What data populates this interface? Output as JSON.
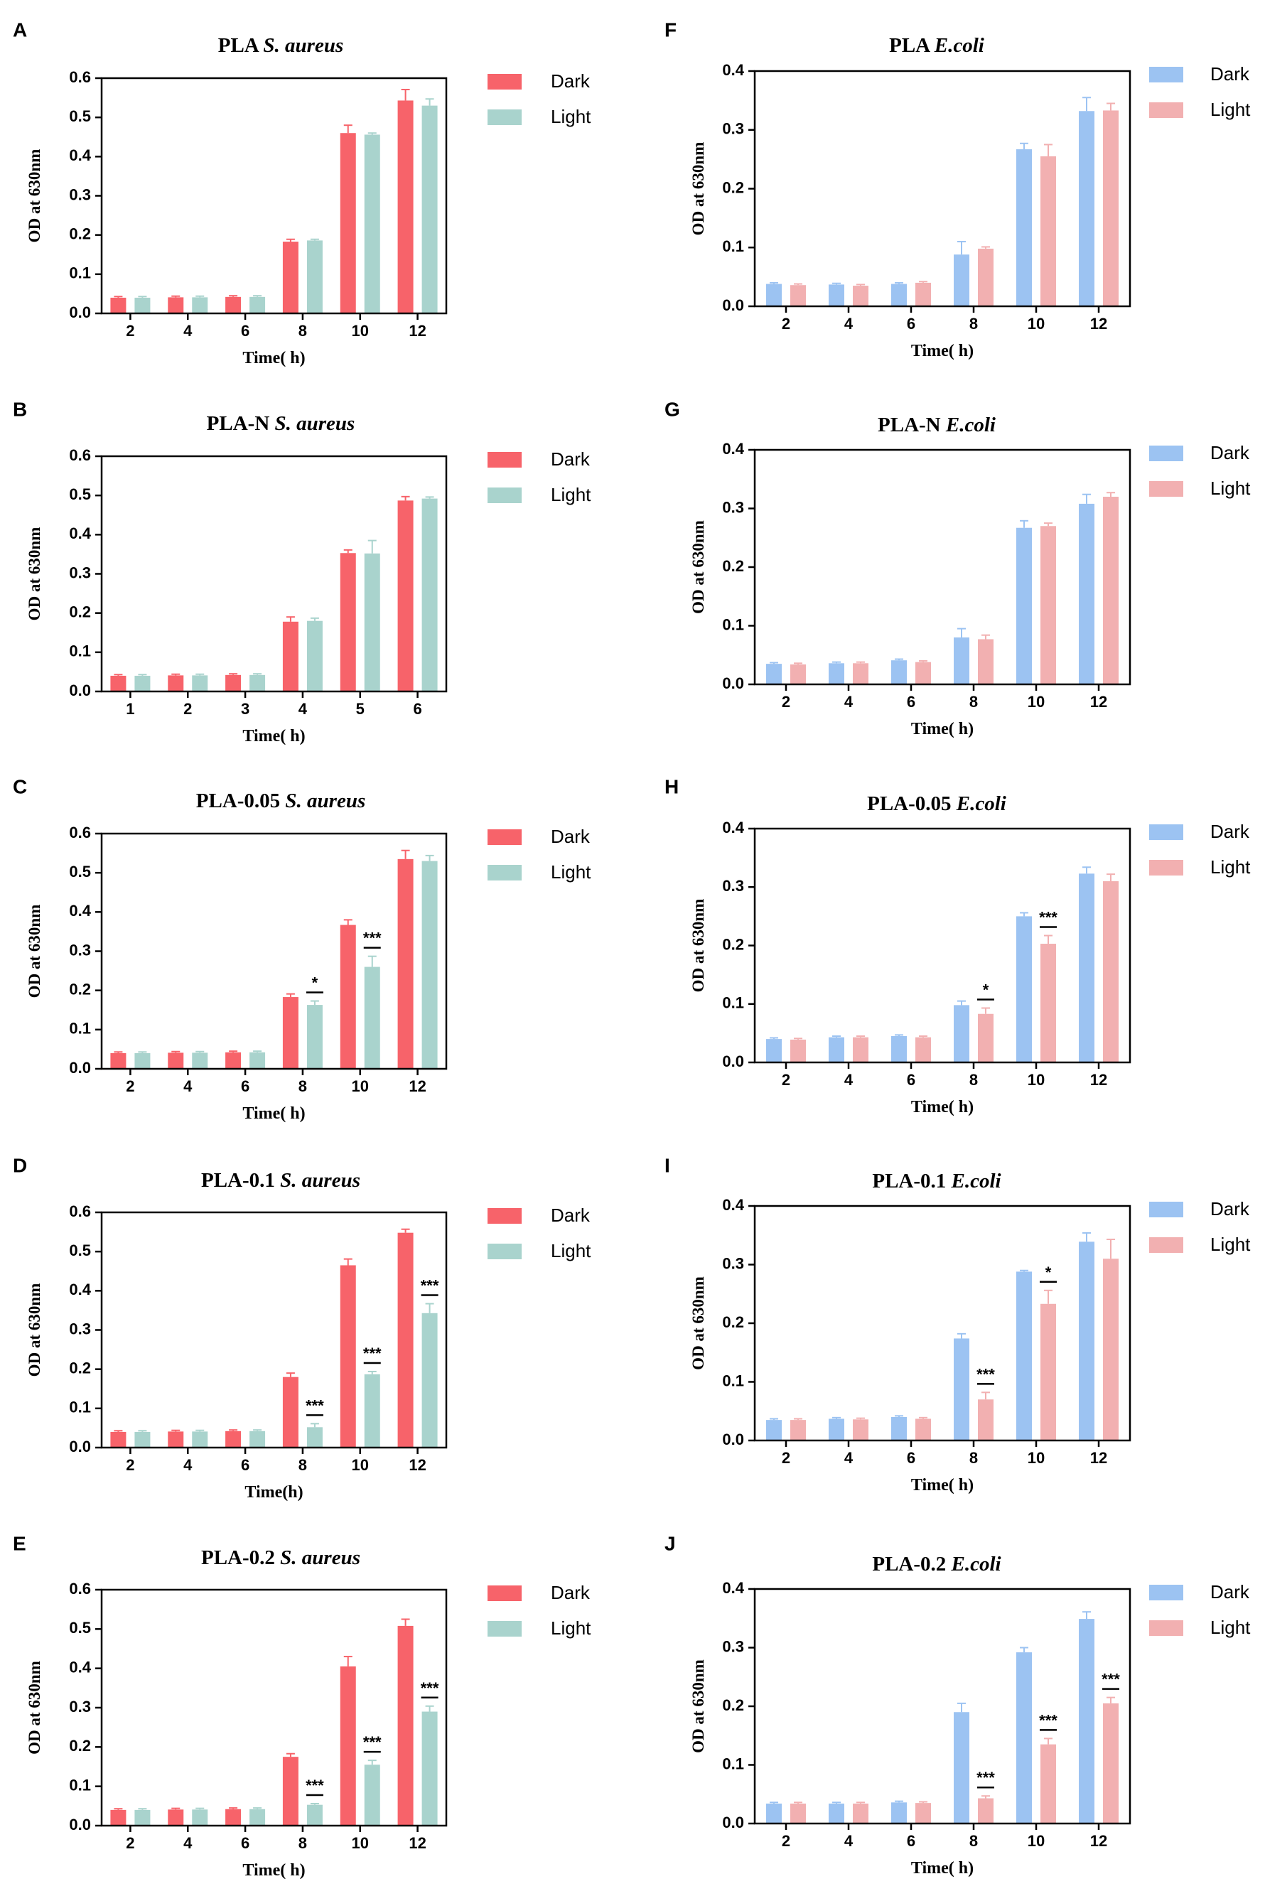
{
  "colors": {
    "saureus_dark": "#f7636a",
    "saureus_light": "#a9d3cd",
    "ecoli_dark": "#9cc3f2",
    "ecoli_light": "#f2b0b1",
    "axis": "#000000"
  },
  "chart_data": [
    {
      "panel": "A",
      "type": "bar",
      "title_prefix": "PLA",
      "title_species": "S. aureus",
      "xlabel": "Time( h)",
      "ylabel": "OD at 630nm",
      "categories": [
        "2",
        "4",
        "6",
        "8",
        "10",
        "12"
      ],
      "ylim": [
        0,
        0.6
      ],
      "yticks": [
        "0.0",
        "0.1",
        "0.2",
        "0.3",
        "0.4",
        "0.5",
        "0.6"
      ],
      "legend_position": "right",
      "palette": "saureus",
      "series": [
        {
          "name": "Dark",
          "values": [
            0.04,
            0.041,
            0.042,
            0.183,
            0.46,
            0.543
          ],
          "errors": [
            0.003,
            0.003,
            0.003,
            0.006,
            0.02,
            0.028
          ]
        },
        {
          "name": "Light",
          "values": [
            0.04,
            0.041,
            0.042,
            0.186,
            0.456,
            0.53
          ],
          "errors": [
            0.003,
            0.003,
            0.003,
            0.003,
            0.004,
            0.017
          ]
        }
      ],
      "annotations": []
    },
    {
      "panel": "B",
      "type": "bar",
      "title_prefix": "PLA-N",
      "title_species": "S. aureus",
      "xlabel": "Time( h)",
      "ylabel": "OD at 630nm",
      "categories": [
        "1",
        "2",
        "3",
        "4",
        "5",
        "6"
      ],
      "ylim": [
        0,
        0.6
      ],
      "yticks": [
        "0.0",
        "0.1",
        "0.2",
        "0.3",
        "0.4",
        "0.5",
        "0.6"
      ],
      "legend_position": "right",
      "palette": "saureus",
      "series": [
        {
          "name": "Dark",
          "values": [
            0.04,
            0.041,
            0.042,
            0.178,
            0.353,
            0.487
          ],
          "errors": [
            0.003,
            0.003,
            0.003,
            0.012,
            0.008,
            0.01
          ]
        },
        {
          "name": "Light",
          "values": [
            0.04,
            0.041,
            0.042,
            0.18,
            0.352,
            0.492
          ],
          "errors": [
            0.003,
            0.003,
            0.003,
            0.007,
            0.033,
            0.004
          ]
        }
      ],
      "annotations": []
    },
    {
      "panel": "C",
      "type": "bar",
      "title_prefix": "PLA-0.05",
      "title_species": "S. aureus",
      "xlabel": "Time( h)",
      "ylabel": "OD at 630nm",
      "categories": [
        "2",
        "4",
        "6",
        "8",
        "10",
        "12"
      ],
      "ylim": [
        0,
        0.6
      ],
      "yticks": [
        "0.0",
        "0.1",
        "0.2",
        "0.3",
        "0.4",
        "0.5",
        "0.6"
      ],
      "legend_position": "right",
      "palette": "saureus",
      "series": [
        {
          "name": "Dark",
          "values": [
            0.04,
            0.041,
            0.042,
            0.183,
            0.367,
            0.535
          ],
          "errors": [
            0.003,
            0.003,
            0.003,
            0.008,
            0.013,
            0.022
          ]
        },
        {
          "name": "Light",
          "values": [
            0.04,
            0.041,
            0.042,
            0.163,
            0.26,
            0.53
          ],
          "errors": [
            0.003,
            0.003,
            0.003,
            0.01,
            0.027,
            0.014
          ]
        }
      ],
      "annotations": [
        {
          "category_index": 3,
          "text": "*"
        },
        {
          "category_index": 4,
          "text": "***"
        }
      ]
    },
    {
      "panel": "D",
      "type": "bar",
      "title_prefix": "PLA-0.1",
      "title_species": "S. aureus",
      "xlabel": "Time(h)",
      "ylabel": "OD at 630nm",
      "categories": [
        "2",
        "4",
        "6",
        "8",
        "10",
        "12"
      ],
      "ylim": [
        0,
        0.6
      ],
      "yticks": [
        "0.0",
        "0.1",
        "0.2",
        "0.3",
        "0.4",
        "0.5",
        "0.6"
      ],
      "legend_position": "right",
      "palette": "saureus",
      "series": [
        {
          "name": "Dark",
          "values": [
            0.04,
            0.041,
            0.042,
            0.18,
            0.465,
            0.548
          ],
          "errors": [
            0.003,
            0.003,
            0.003,
            0.01,
            0.016,
            0.009
          ]
        },
        {
          "name": "Light",
          "values": [
            0.04,
            0.041,
            0.042,
            0.052,
            0.187,
            0.343
          ],
          "errors": [
            0.003,
            0.003,
            0.003,
            0.009,
            0.007,
            0.024
          ]
        }
      ],
      "annotations": [
        {
          "category_index": 3,
          "text": "***"
        },
        {
          "category_index": 4,
          "text": "***"
        },
        {
          "category_index": 5,
          "text": "***"
        }
      ]
    },
    {
      "panel": "E",
      "type": "bar",
      "title_prefix": "PLA-0.2",
      "title_species": "S. aureus",
      "xlabel": "Time( h)",
      "ylabel": "OD at 630nm",
      "categories": [
        "2",
        "4",
        "6",
        "8",
        "10",
        "12"
      ],
      "ylim": [
        0,
        0.6
      ],
      "yticks": [
        "0.0",
        "0.1",
        "0.2",
        "0.3",
        "0.4",
        "0.5",
        "0.6"
      ],
      "legend_position": "right",
      "palette": "saureus",
      "series": [
        {
          "name": "Dark",
          "values": [
            0.04,
            0.041,
            0.042,
            0.175,
            0.405,
            0.508
          ],
          "errors": [
            0.003,
            0.003,
            0.003,
            0.008,
            0.025,
            0.017
          ]
        },
        {
          "name": "Light",
          "values": [
            0.04,
            0.041,
            0.042,
            0.053,
            0.155,
            0.29
          ],
          "errors": [
            0.003,
            0.003,
            0.003,
            0.003,
            0.011,
            0.014
          ]
        }
      ],
      "annotations": [
        {
          "category_index": 3,
          "text": "***"
        },
        {
          "category_index": 4,
          "text": "***"
        },
        {
          "category_index": 5,
          "text": "***"
        }
      ]
    },
    {
      "panel": "F",
      "type": "bar",
      "title_prefix": "PLA",
      "title_species": "E.coli",
      "xlabel": "Time( h)",
      "ylabel": "OD at 630nm",
      "categories": [
        "2",
        "4",
        "6",
        "8",
        "10",
        "12"
      ],
      "ylim": [
        0,
        0.4
      ],
      "yticks": [
        "0.0",
        "0.1",
        "0.2",
        "0.3",
        "0.4"
      ],
      "legend_position": "right",
      "palette": "ecoli",
      "series": [
        {
          "name": "Dark",
          "values": [
            0.038,
            0.037,
            0.038,
            0.088,
            0.267,
            0.332
          ],
          "errors": [
            0.002,
            0.002,
            0.002,
            0.022,
            0.01,
            0.023
          ]
        },
        {
          "name": "Light",
          "values": [
            0.036,
            0.035,
            0.04,
            0.098,
            0.255,
            0.333
          ],
          "errors": [
            0.002,
            0.002,
            0.002,
            0.003,
            0.02,
            0.012
          ]
        }
      ],
      "annotations": []
    },
    {
      "panel": "G",
      "type": "bar",
      "title_prefix": "PLA-N",
      "title_species": "E.coli",
      "xlabel": "Time( h)",
      "ylabel": "OD at 630nm",
      "categories": [
        "2",
        "4",
        "6",
        "8",
        "10",
        "12"
      ],
      "ylim": [
        0,
        0.4
      ],
      "yticks": [
        "0.0",
        "0.1",
        "0.2",
        "0.3",
        "0.4"
      ],
      "legend_position": "right",
      "palette": "ecoli",
      "series": [
        {
          "name": "Dark",
          "values": [
            0.035,
            0.036,
            0.041,
            0.08,
            0.267,
            0.308
          ],
          "errors": [
            0.002,
            0.002,
            0.002,
            0.015,
            0.012,
            0.016
          ]
        },
        {
          "name": "Light",
          "values": [
            0.034,
            0.036,
            0.038,
            0.077,
            0.27,
            0.32
          ],
          "errors": [
            0.002,
            0.002,
            0.002,
            0.007,
            0.005,
            0.007
          ]
        }
      ],
      "annotations": []
    },
    {
      "panel": "H",
      "type": "bar",
      "title_prefix": "PLA-0.05",
      "title_species": "E.coli",
      "xlabel": "Time( h)",
      "ylabel": "OD at 630nm",
      "categories": [
        "2",
        "4",
        "6",
        "8",
        "10",
        "12"
      ],
      "ylim": [
        0,
        0.4
      ],
      "yticks": [
        "0.0",
        "0.1",
        "0.2",
        "0.3",
        "0.4"
      ],
      "legend_position": "right",
      "palette": "ecoli",
      "series": [
        {
          "name": "Dark",
          "values": [
            0.04,
            0.043,
            0.045,
            0.098,
            0.25,
            0.323
          ],
          "errors": [
            0.002,
            0.002,
            0.002,
            0.007,
            0.006,
            0.011
          ]
        },
        {
          "name": "Light",
          "values": [
            0.039,
            0.043,
            0.043,
            0.083,
            0.203,
            0.31
          ],
          "errors": [
            0.002,
            0.002,
            0.002,
            0.01,
            0.014,
            0.012
          ]
        }
      ],
      "annotations": [
        {
          "category_index": 3,
          "text": "*"
        },
        {
          "category_index": 4,
          "text": "***"
        }
      ]
    },
    {
      "panel": "I",
      "type": "bar",
      "title_prefix": "PLA-0.1",
      "title_species": "E.coli",
      "xlabel": "Time( h)",
      "ylabel": "OD at 630nm",
      "categories": [
        "2",
        "4",
        "6",
        "8",
        "10",
        "12"
      ],
      "ylim": [
        0,
        0.4
      ],
      "yticks": [
        "0.0",
        "0.1",
        "0.2",
        "0.3",
        "0.4"
      ],
      "legend_position": "right",
      "palette": "ecoli",
      "series": [
        {
          "name": "Dark",
          "values": [
            0.035,
            0.037,
            0.04,
            0.174,
            0.288,
            0.339
          ],
          "errors": [
            0.002,
            0.002,
            0.002,
            0.008,
            0.002,
            0.015
          ]
        },
        {
          "name": "Light",
          "values": [
            0.035,
            0.036,
            0.037,
            0.07,
            0.233,
            0.31
          ],
          "errors": [
            0.002,
            0.002,
            0.002,
            0.012,
            0.023,
            0.033
          ]
        }
      ],
      "annotations": [
        {
          "category_index": 3,
          "text": "***"
        },
        {
          "category_index": 4,
          "text": "*"
        }
      ]
    },
    {
      "panel": "J",
      "type": "bar",
      "title_prefix": "PLA-0.2",
      "title_species": "E.coli",
      "xlabel": "Time( h)",
      "ylabel": "OD at 630nm",
      "categories": [
        "2",
        "4",
        "6",
        "8",
        "10",
        "12"
      ],
      "ylim": [
        0,
        0.4
      ],
      "yticks": [
        "0.0",
        "0.1",
        "0.2",
        "0.3",
        "0.4"
      ],
      "legend_position": "right",
      "palette": "ecoli",
      "series": [
        {
          "name": "Dark",
          "values": [
            0.034,
            0.034,
            0.036,
            0.19,
            0.292,
            0.349
          ],
          "errors": [
            0.002,
            0.002,
            0.002,
            0.015,
            0.008,
            0.012
          ]
        },
        {
          "name": "Light",
          "values": [
            0.034,
            0.034,
            0.035,
            0.043,
            0.135,
            0.205
          ],
          "errors": [
            0.002,
            0.002,
            0.002,
            0.004,
            0.01,
            0.01
          ]
        }
      ],
      "annotations": [
        {
          "category_index": 3,
          "text": "***"
        },
        {
          "category_index": 4,
          "text": "***"
        },
        {
          "category_index": 5,
          "text": "***"
        }
      ]
    }
  ]
}
